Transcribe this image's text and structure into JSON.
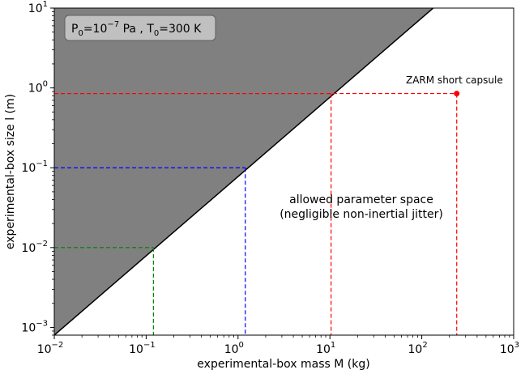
{
  "chart_data": {
    "type": "line",
    "title": "",
    "xlabel": "experimental-box mass M (kg)",
    "ylabel": "experimental-box size l (m)",
    "xscale": "log",
    "yscale": "log",
    "xlim": [
      0.01,
      1000
    ],
    "ylim": [
      0.0008,
      10
    ],
    "x_ticks": [
      {
        "value": 0.01,
        "base": "10",
        "exp": "−2"
      },
      {
        "value": 0.1,
        "base": "10",
        "exp": "−1"
      },
      {
        "value": 1,
        "base": "10",
        "exp": "0"
      },
      {
        "value": 10,
        "base": "10",
        "exp": "1"
      },
      {
        "value": 100,
        "base": "10",
        "exp": "2"
      },
      {
        "value": 1000,
        "base": "10",
        "exp": "3"
      }
    ],
    "y_ticks": [
      {
        "value": 0.001,
        "base": "10",
        "exp": "−3"
      },
      {
        "value": 0.01,
        "base": "10",
        "exp": "−2"
      },
      {
        "value": 0.1,
        "base": "10",
        "exp": "−1"
      },
      {
        "value": 1,
        "base": "10",
        "exp": "0"
      },
      {
        "value": 10,
        "base": "10",
        "exp": "1"
      }
    ],
    "boundary": {
      "x": [
        0.01,
        133
      ],
      "y": [
        0.0008,
        10
      ],
      "color": "#000000",
      "region_fill": "#808080"
    },
    "guides": [
      {
        "x": 0.12,
        "y": 0.01,
        "color": "#008000"
      },
      {
        "x": 1.2,
        "y": 0.1,
        "color": "#0000ff"
      },
      {
        "x": 10.3,
        "y": 0.85,
        "color": "#ff0000"
      },
      {
        "x": 240,
        "y": 0.85,
        "color": "#ff0000"
      }
    ],
    "point": {
      "x": 240,
      "y": 0.85,
      "label": "ZARM short capsule",
      "color": "#ff0000"
    },
    "legend_box": {
      "p_label": "P",
      "p_sub": "0",
      "p_eq": "=10",
      "p_exp": "−7",
      "p_unit": " Pa , T",
      "t_sub": "0",
      "t_val": "=300 K"
    },
    "annotation_lines": [
      "allowed parameter space",
      "(negligible non-inertial jitter)"
    ]
  }
}
